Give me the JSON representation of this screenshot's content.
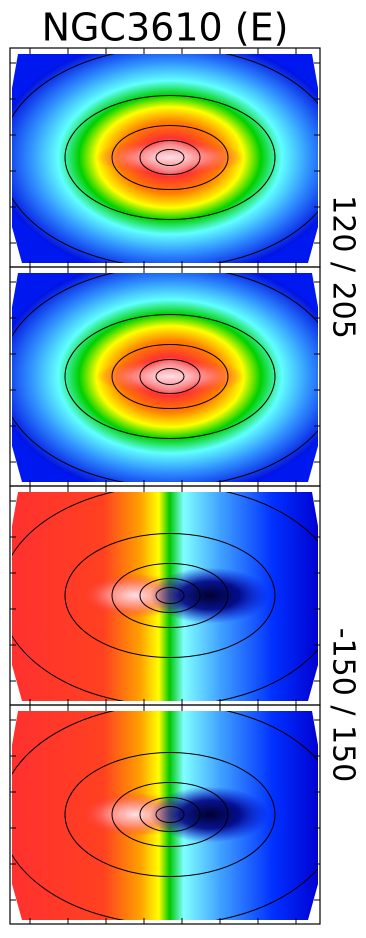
{
  "title": "NGC3610 (E)",
  "panel_labels": [
    "120 / 205",
    "-150 / 150"
  ]
}
